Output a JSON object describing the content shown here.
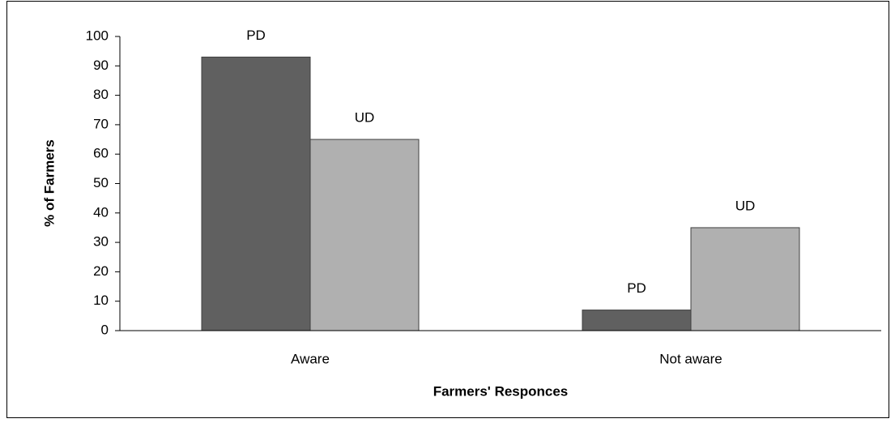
{
  "chart_data": {
    "type": "bar",
    "x_label": "Farmers' Responces",
    "y_label": "% of Farmers",
    "categories": [
      "Aware",
      "Not aware"
    ],
    "series": [
      {
        "name": "PD",
        "color": "#606060",
        "values": [
          93,
          7
        ]
      },
      {
        "name": "UD",
        "color": "#b0b0b0",
        "values": [
          65,
          35
        ]
      }
    ],
    "ylim": [
      0,
      100
    ],
    "yticks": [
      0,
      10,
      20,
      30,
      40,
      50,
      60,
      70,
      80,
      90,
      100
    ],
    "grid": false
  }
}
